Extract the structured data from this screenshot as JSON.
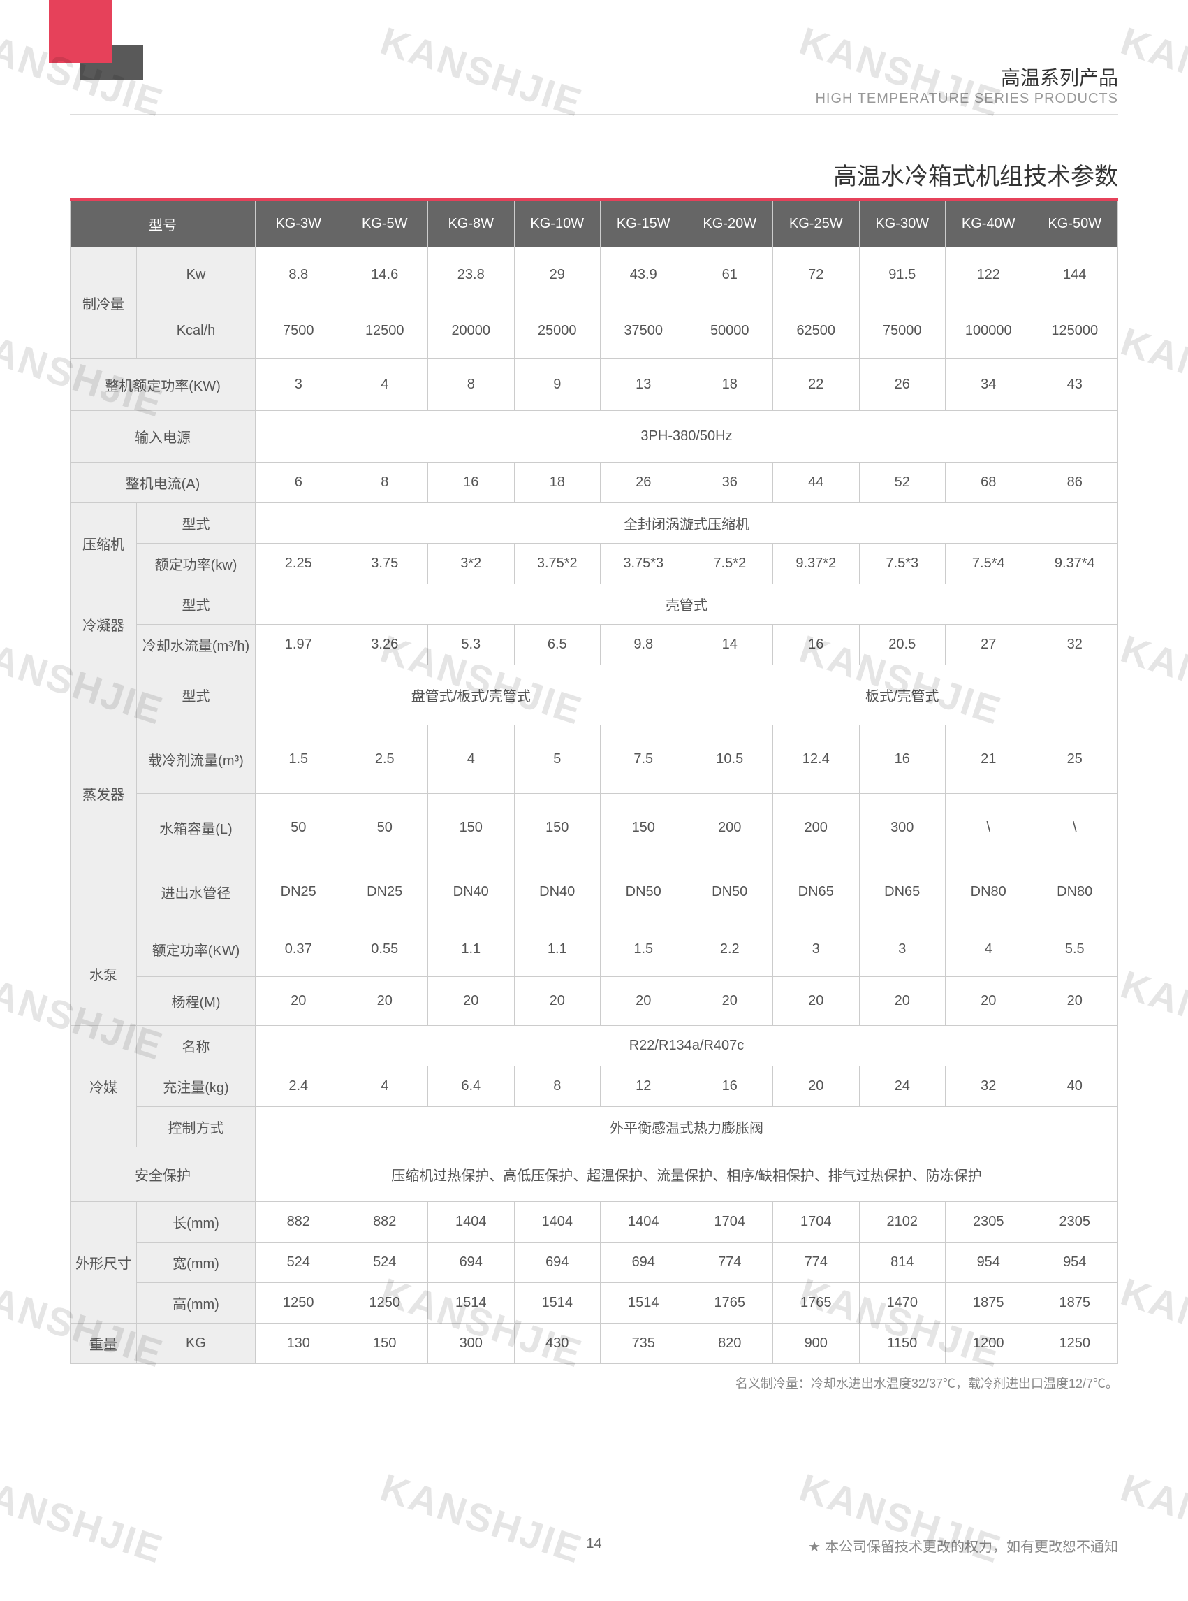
{
  "watermark": "KANSHJIE",
  "header": {
    "cn": "高温系列产品",
    "en": "HIGH TEMPERATURE SERIES PRODUCTS"
  },
  "title": "高温水冷箱式机组技术参数",
  "pageNumber": "14",
  "disclaimer": "本公司保留技术更改的权力，如有更改恕不通知",
  "footnote": "名义制冷量：冷却水进出水温度32/37℃，载冷剂进出口温度12/7℃。",
  "cols": {
    "model": "型号",
    "list": [
      "KG-3W",
      "KG-5W",
      "KG-8W",
      "KG-10W",
      "KG-15W",
      "KG-20W",
      "KG-25W",
      "KG-30W",
      "KG-40W",
      "KG-50W"
    ]
  },
  "rows": {
    "cooling": {
      "label": "制冷量",
      "kw": {
        "label": "Kw",
        "v": [
          "8.8",
          "14.6",
          "23.8",
          "29",
          "43.9",
          "61",
          "72",
          "91.5",
          "122",
          "144"
        ]
      },
      "kcal": {
        "label": "Kcal/h",
        "v": [
          "7500",
          "12500",
          "20000",
          "25000",
          "37500",
          "50000",
          "62500",
          "75000",
          "100000",
          "125000"
        ]
      }
    },
    "rated": {
      "label": "整机额定功率(KW)",
      "v": [
        "3",
        "4",
        "8",
        "9",
        "13",
        "18",
        "22",
        "26",
        "34",
        "43"
      ]
    },
    "power": {
      "label": "输入电源",
      "v": "3PH-380/50Hz"
    },
    "current": {
      "label": "整机电流(A)",
      "v": [
        "6",
        "8",
        "16",
        "18",
        "26",
        "36",
        "44",
        "52",
        "68",
        "86"
      ]
    },
    "comp": {
      "label": "压缩机",
      "type": {
        "label": "型式",
        "v": "全封闭涡漩式压缩机"
      },
      "p": {
        "label": "额定功率(kw)",
        "v": [
          "2.25",
          "3.75",
          "3*2",
          "3.75*2",
          "3.75*3",
          "7.5*2",
          "9.37*2",
          "7.5*3",
          "7.5*4",
          "9.37*4"
        ]
      }
    },
    "cond": {
      "label": "冷凝器",
      "type": {
        "label": "型式",
        "v": "壳管式"
      },
      "flow": {
        "label": "冷却水流量(m³/h)",
        "v": [
          "1.97",
          "3.26",
          "5.3",
          "6.5",
          "9.8",
          "14",
          "16",
          "20.5",
          "27",
          "32"
        ]
      }
    },
    "evap": {
      "label": "蒸发器",
      "type": {
        "label": "型式",
        "v1": "盘管式/板式/壳管式",
        "v2": "板式/壳管式"
      },
      "flow": {
        "label": "载冷剂流量(m³)",
        "v": [
          "1.5",
          "2.5",
          "4",
          "5",
          "7.5",
          "10.5",
          "12.4",
          "16",
          "21",
          "25"
        ]
      },
      "tank": {
        "label": "水箱容量(L)",
        "v": [
          "50",
          "50",
          "150",
          "150",
          "150",
          "200",
          "200",
          "300",
          "\\",
          "\\"
        ]
      },
      "pipe": {
        "label": "进出水管径",
        "v": [
          "DN25",
          "DN25",
          "DN40",
          "DN40",
          "DN50",
          "DN50",
          "DN65",
          "DN65",
          "DN80",
          "DN80"
        ]
      }
    },
    "pump": {
      "label": "水泵",
      "p": {
        "label": "额定功率(KW)",
        "v": [
          "0.37",
          "0.55",
          "1.1",
          "1.1",
          "1.5",
          "2.2",
          "3",
          "3",
          "4",
          "5.5"
        ]
      },
      "head": {
        "label": "杨程(M)",
        "v": [
          "20",
          "20",
          "20",
          "20",
          "20",
          "20",
          "20",
          "20",
          "20",
          "20"
        ]
      }
    },
    "ref": {
      "label": "冷媒",
      "name": {
        "label": "名称",
        "v": "R22/R134a/R407c"
      },
      "charge": {
        "label": "充注量(kg)",
        "v": [
          "2.4",
          "4",
          "6.4",
          "8",
          "12",
          "16",
          "20",
          "24",
          "32",
          "40"
        ]
      },
      "ctrl": {
        "label": "控制方式",
        "v": "外平衡感温式热力膨胀阀"
      }
    },
    "safety": {
      "label": "安全保护",
      "v": "压缩机过热保护、高低压保护、超温保护、流量保护、相序/缺相保护、排气过热保护、防冻保护"
    },
    "dim": {
      "label": "外形尺寸",
      "l": {
        "label": "长(mm)",
        "v": [
          "882",
          "882",
          "1404",
          "1404",
          "1404",
          "1704",
          "1704",
          "2102",
          "2305",
          "2305"
        ]
      },
      "w": {
        "label": "宽(mm)",
        "v": [
          "524",
          "524",
          "694",
          "694",
          "694",
          "774",
          "774",
          "814",
          "954",
          "954"
        ]
      },
      "h": {
        "label": "高(mm)",
        "v": [
          "1250",
          "1250",
          "1514",
          "1514",
          "1514",
          "1765",
          "1765",
          "1470",
          "1875",
          "1875"
        ]
      }
    },
    "weight": {
      "label": "重量",
      "unit": "KG",
      "v": [
        "130",
        "150",
        "300",
        "430",
        "735",
        "820",
        "900",
        "1150",
        "1200",
        "1250"
      ]
    }
  },
  "style": {
    "brand": "#e6415a",
    "headerBg": "#666",
    "hcell": "#eee",
    "border": "#ccc",
    "text": "#555",
    "muted": "#888"
  }
}
